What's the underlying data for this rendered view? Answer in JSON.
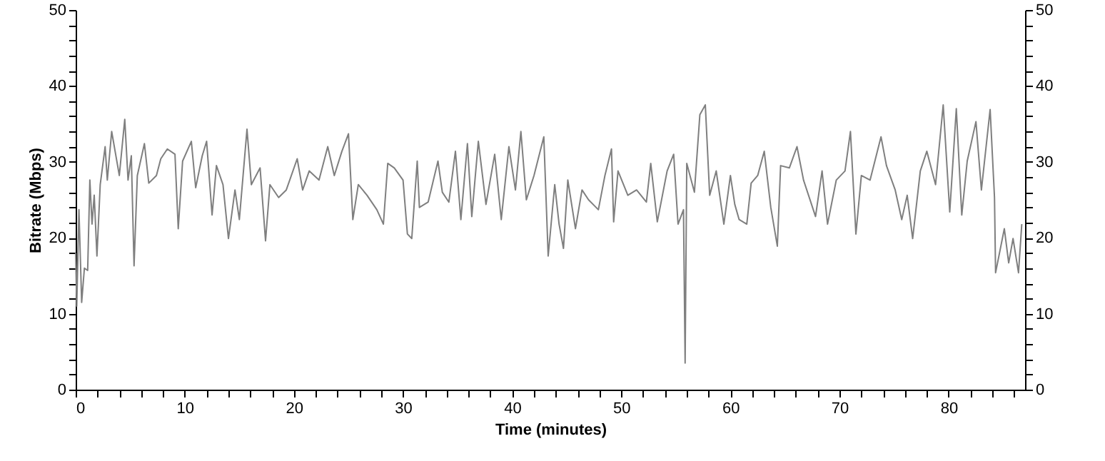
{
  "chart_data": {
    "type": "line",
    "xlabel": "Time (minutes)",
    "ylabel": "Bitrate (Mbps)",
    "x": [
      0,
      0.1,
      0.3,
      0.55,
      0.8,
      1.1,
      1.3,
      1.5,
      1.7,
      1.95,
      2.25,
      2.7,
      2.9,
      3.3,
      4.0,
      4.5,
      4.8,
      5.1,
      5.35,
      5.65,
      6.3,
      6.7,
      7.4,
      7.8,
      8.4,
      9.1,
      9.4,
      9.8,
      10.6,
      11,
      11.6,
      12,
      12.5,
      12.9,
      13.5,
      14,
      14.6,
      15,
      15.7,
      16.1,
      16.9,
      17.4,
      17.8,
      18.6,
      19.3,
      20.3,
      20.8,
      21.4,
      22.3,
      23.1,
      23.7,
      24.4,
      25,
      25.4,
      25.9,
      26.7,
      27.6,
      28.2,
      28.6,
      29.2,
      30,
      30.4,
      30.8,
      31.3,
      31.5,
      32.3,
      33.2,
      33.6,
      34.2,
      34.8,
      35.3,
      35.9,
      36.3,
      36.9,
      37.6,
      38.4,
      39,
      39.7,
      40.3,
      40.8,
      41.3,
      42,
      42.9,
      43.3,
      43.9,
      44.3,
      44.7,
      45.1,
      45.8,
      46.4,
      47,
      47.9,
      48.5,
      49.1,
      49.3,
      49.7,
      50.6,
      51.4,
      52.3,
      52.7,
      53.3,
      54.2,
      54.8,
      55.2,
      55.7,
      55.85,
      56,
      56.7,
      57.2,
      57.7,
      58.1,
      58.7,
      59.4,
      60,
      60.4,
      60.8,
      61.5,
      61.9,
      62.5,
      63.1,
      63.7,
      64.3,
      64.6,
      65.4,
      66.1,
      66.7,
      67.8,
      68.4,
      68.9,
      69.7,
      70.5,
      71,
      71.5,
      72,
      72.8,
      73.8,
      74.3,
      75.1,
      75.7,
      76.2,
      76.7,
      77.4,
      78,
      78.8,
      79.5,
      80.1,
      80.7,
      81.2,
      81.7,
      82.5,
      83,
      83.8,
      84.2,
      84.3,
      85.1,
      85.5,
      85.9,
      86.4,
      86.7
    ],
    "series": [
      {
        "color": "#7f7f7f",
        "values": [
          18,
          11,
          23.7,
          11.5,
          16,
          15.7,
          27.6,
          21.8,
          25.6,
          17.6,
          27,
          32,
          27.6,
          34,
          28.2,
          35.6,
          27.6,
          30.8,
          16.3,
          28.2,
          32.4,
          27.2,
          28.2,
          30.4,
          31.7,
          31,
          21.2,
          30.1,
          32.7,
          26.6,
          30.8,
          32.7,
          23,
          29.5,
          27,
          19.9,
          26.3,
          22.4,
          34.3,
          27,
          29.2,
          19.6,
          27,
          25.3,
          26.3,
          30.4,
          26.3,
          28.8,
          27.6,
          32,
          28.2,
          31.4,
          33.7,
          22.4,
          27,
          25.6,
          23.7,
          21.8,
          29.8,
          29.2,
          27.6,
          20.5,
          19.9,
          30.1,
          24,
          24.7,
          30.1,
          26,
          24.7,
          31.4,
          22.4,
          32.4,
          22.8,
          32.7,
          24.4,
          31,
          22.4,
          32,
          26.3,
          34,
          25,
          28.2,
          33.3,
          17.6,
          27,
          21.8,
          18.6,
          27.6,
          21.2,
          26.3,
          25,
          23.7,
          28.2,
          31.7,
          22.1,
          28.8,
          25.6,
          26.3,
          24.7,
          29.8,
          22.1,
          28.8,
          31,
          21.8,
          23.7,
          3.5,
          29.8,
          26,
          36.2,
          37.5,
          25.6,
          28.8,
          21.8,
          28.2,
          24.4,
          22.4,
          21.8,
          27.2,
          28.2,
          31.4,
          24,
          18.9,
          29.5,
          29.2,
          32,
          27.6,
          22.8,
          28.8,
          21.8,
          27.6,
          28.8,
          34,
          20.5,
          28.2,
          27.6,
          33.3,
          29.5,
          26.3,
          22.4,
          25.6,
          19.9,
          28.8,
          31.4,
          27,
          37.5,
          23.4,
          37,
          23,
          30.1,
          35.3,
          26.3,
          36.9,
          25.3,
          15.4,
          21.2,
          16.7,
          19.9,
          15.4,
          21.8
        ]
      }
    ],
    "xlim": [
      0,
      87
    ],
    "xticks": [
      0,
      {
        "value": 2,
        "label": null
      },
      {
        "value": 4,
        "label": null
      },
      {
        "value": 6,
        "label": null
      },
      {
        "value": 8,
        "label": null
      },
      10,
      {
        "value": 12,
        "label": null
      },
      {
        "value": 14,
        "label": null
      },
      {
        "value": 16,
        "label": null
      },
      {
        "value": 18,
        "label": null
      },
      20,
      {
        "value": 22,
        "label": null
      },
      {
        "value": 24,
        "label": null
      },
      {
        "value": 26,
        "label": null
      },
      {
        "value": 28,
        "label": null
      },
      30,
      {
        "value": 32,
        "label": null
      },
      {
        "value": 34,
        "label": null
      },
      {
        "value": 36,
        "label": null
      },
      {
        "value": 38,
        "label": null
      },
      40,
      {
        "value": 42,
        "label": null
      },
      {
        "value": 44,
        "label": null
      },
      {
        "value": 46,
        "label": null
      },
      {
        "value": 48,
        "label": null
      },
      50,
      {
        "value": 52,
        "label": null
      },
      {
        "value": 54,
        "label": null
      },
      {
        "value": 56,
        "label": null
      },
      {
        "value": 58,
        "label": null
      },
      60,
      {
        "value": 62,
        "label": null
      },
      {
        "value": 64,
        "label": null
      },
      {
        "value": 66,
        "label": null
      },
      {
        "value": 68,
        "label": null
      },
      70,
      {
        "value": 72,
        "label": null
      },
      {
        "value": 74,
        "label": null
      },
      {
        "value": 76,
        "label": null
      },
      {
        "value": 78,
        "label": null
      },
      80,
      {
        "value": 82,
        "label": null
      },
      {
        "value": 84,
        "label": null
      },
      {
        "value": 86,
        "label": null
      }
    ],
    "ylim": [
      0,
      50
    ],
    "yticks": [
      0,
      {
        "value": 2,
        "label": null
      },
      {
        "value": 4,
        "label": null
      },
      {
        "value": 6,
        "label": null
      },
      {
        "value": 8,
        "label": null
      },
      10,
      {
        "value": 12,
        "label": null
      },
      {
        "value": 14,
        "label": null
      },
      {
        "value": 16,
        "label": null
      },
      {
        "value": 18,
        "label": null
      },
      20,
      {
        "value": 22,
        "label": null
      },
      {
        "value": 24,
        "label": null
      },
      {
        "value": 26,
        "label": null
      },
      {
        "value": 28,
        "label": null
      },
      30,
      {
        "value": 32,
        "label": null
      },
      {
        "value": 34,
        "label": null
      },
      {
        "value": 36,
        "label": null
      },
      {
        "value": 38,
        "label": null
      },
      40,
      {
        "value": 42,
        "label": null
      },
      {
        "value": 44,
        "label": null
      },
      {
        "value": 46,
        "label": null
      },
      {
        "value": 48,
        "label": null
      },
      50
    ],
    "y2lim": [
      0,
      50
    ],
    "y2ticks": [
      0,
      {
        "value": 2,
        "label": null
      },
      {
        "value": 4,
        "label": null
      },
      {
        "value": 6,
        "label": null
      },
      {
        "value": 8,
        "label": null
      },
      10,
      {
        "value": 12,
        "label": null
      },
      {
        "value": 14,
        "label": null
      },
      {
        "value": 16,
        "label": null
      },
      {
        "value": 18,
        "label": null
      },
      20,
      {
        "value": 22,
        "label": null
      },
      {
        "value": 24,
        "label": null
      },
      {
        "value": 26,
        "label": null
      },
      {
        "value": 28,
        "label": null
      },
      30,
      {
        "value": 32,
        "label": null
      },
      {
        "value": 34,
        "label": null
      },
      {
        "value": 36,
        "label": null
      },
      {
        "value": 38,
        "label": null
      },
      40,
      {
        "value": 42,
        "label": null
      },
      {
        "value": 44,
        "label": null
      },
      {
        "value": 46,
        "label": null
      },
      {
        "value": 48,
        "label": null
      },
      50
    ]
  }
}
